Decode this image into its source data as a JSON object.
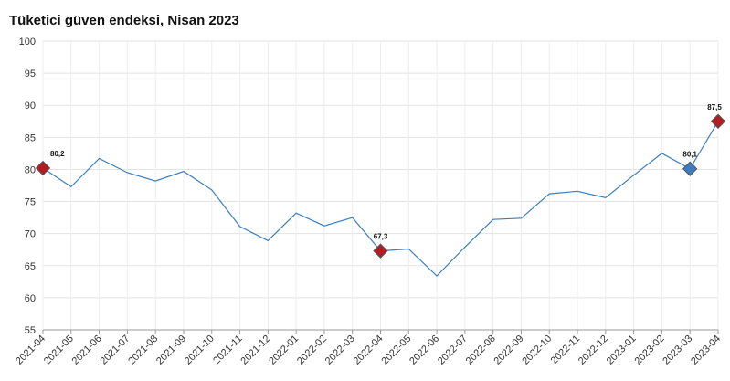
{
  "chart_data": {
    "type": "line",
    "title": "Tüketici güven endeksi, Nisan 2023",
    "xlabel": "",
    "ylabel": "",
    "ylim": [
      55,
      100
    ],
    "yticks": [
      55,
      60,
      65,
      70,
      75,
      80,
      85,
      90,
      95,
      100
    ],
    "grid": true,
    "legend": "none",
    "categories": [
      "2021-04",
      "2021-05",
      "2021-06",
      "2021-07",
      "2021-08",
      "2021-09",
      "2021-10",
      "2021-11",
      "2021-12",
      "2022-01",
      "2022-02",
      "2022-03",
      "2022-04",
      "2022-05",
      "2022-06",
      "2022-07",
      "2022-08",
      "2022-09",
      "2022-10",
      "2022-11",
      "2022-12",
      "2023-01",
      "2023-02",
      "2023-03",
      "2023-04"
    ],
    "series": [
      {
        "values": [
          80.2,
          77.3,
          81.7,
          79.5,
          78.2,
          79.7,
          76.8,
          71.1,
          68.9,
          73.2,
          71.2,
          72.5,
          67.3,
          67.6,
          63.4,
          67.9,
          72.2,
          72.4,
          76.2,
          76.6,
          75.6,
          79.1,
          82.5,
          80.1,
          87.5
        ],
        "color": "#3a7ec0"
      }
    ],
    "markers": [
      {
        "index": 0,
        "label": "80,2",
        "color": "#b01e23"
      },
      {
        "index": 12,
        "label": "67,3",
        "color": "#b01e23"
      },
      {
        "index": 23,
        "label": "80,1",
        "color": "#3a7ec0"
      },
      {
        "index": 24,
        "label": "87,5",
        "color": "#b01e23"
      }
    ]
  }
}
